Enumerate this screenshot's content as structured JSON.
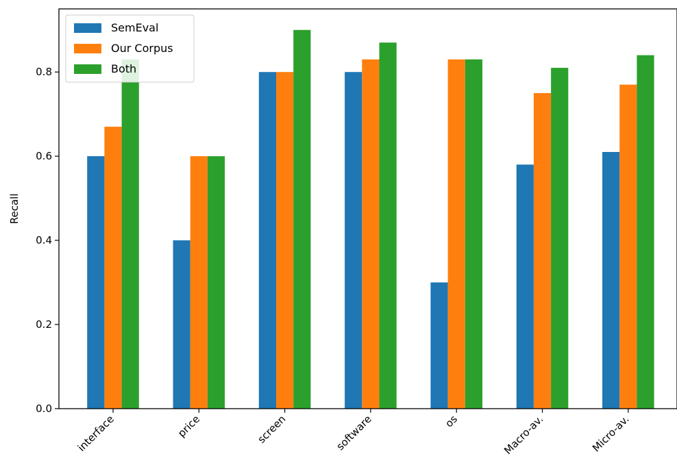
{
  "chart_data": {
    "type": "bar",
    "title": "",
    "xlabel": "",
    "ylabel": "Recall",
    "ylim": [
      0,
      0.95
    ],
    "yticks": [
      "0.0",
      "0.2",
      "0.4",
      "0.6",
      "0.8"
    ],
    "ytick_values": [
      0,
      0.2,
      0.4,
      0.6,
      0.8
    ],
    "categories": [
      "interface",
      "price",
      "screen",
      "software",
      "os",
      "Macro-av.",
      "Micro-av."
    ],
    "series": [
      {
        "name": "SemEval",
        "color": "#1f77b4",
        "values": [
          0.6,
          0.4,
          0.8,
          0.8,
          0.3,
          0.58,
          0.61
        ]
      },
      {
        "name": "Our Corpus",
        "color": "#ff7f0e",
        "values": [
          0.67,
          0.6,
          0.8,
          0.83,
          0.83,
          0.75,
          0.77
        ]
      },
      {
        "name": "Both",
        "color": "#2ca02c",
        "values": [
          0.83,
          0.6,
          0.9,
          0.87,
          0.83,
          0.81,
          0.84
        ]
      }
    ],
    "legend_position": "top-left",
    "grid": false
  }
}
